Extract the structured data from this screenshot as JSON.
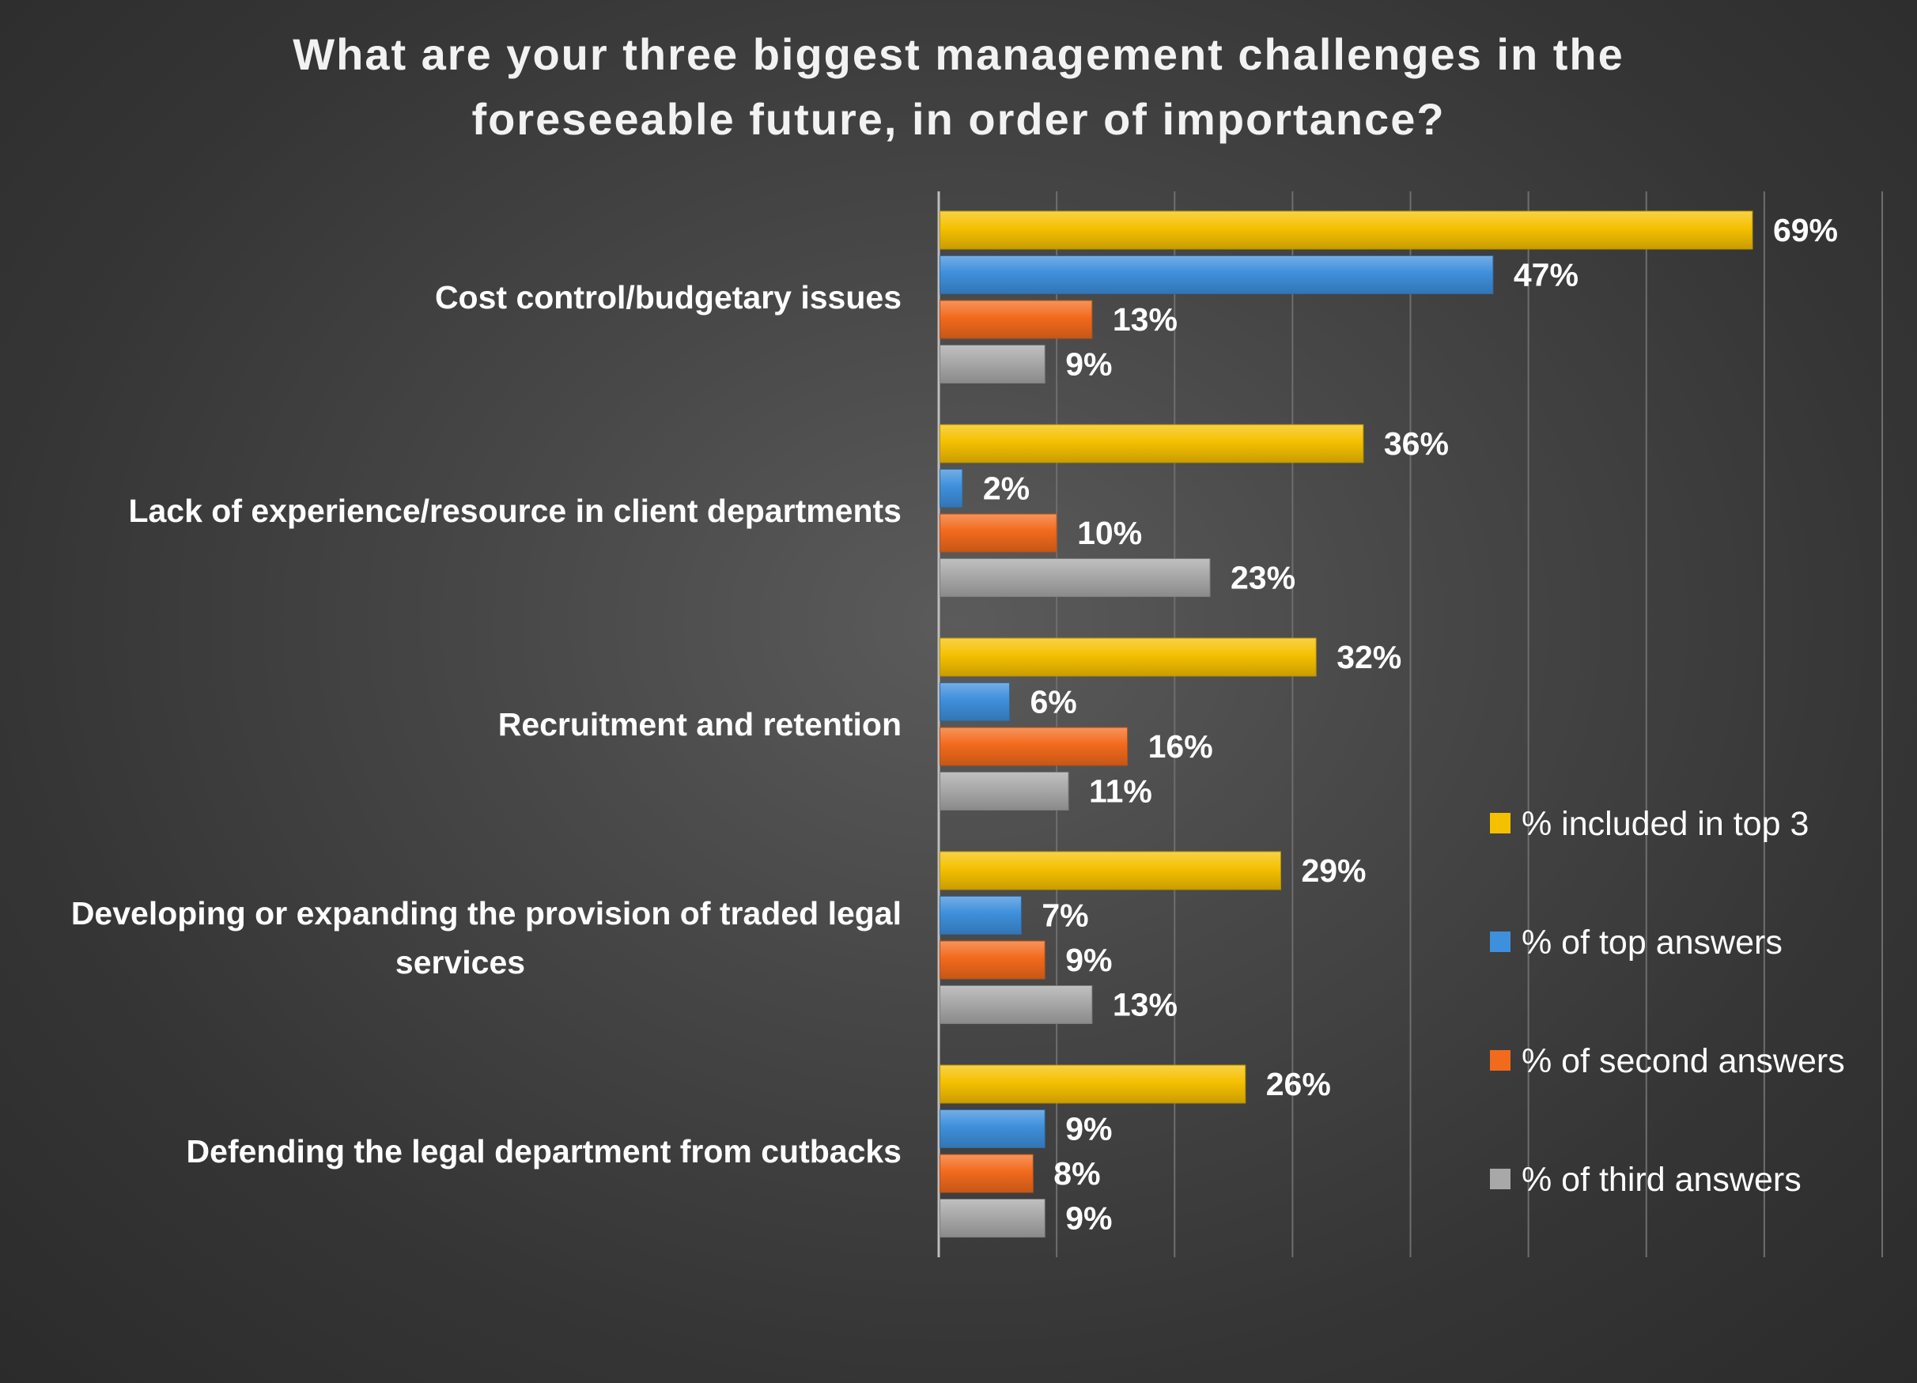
{
  "chart_data": {
    "type": "bar",
    "orientation": "horizontal",
    "title": "What are your three biggest management challenges in the foreseeable future, in order of importance?",
    "title_lines": [
      "What are your three biggest management challenges in the",
      "foreseeable future, in order of importance?"
    ],
    "categories": [
      "Cost control/budgetary issues",
      "Lack of experience/resource in client departments",
      "Recruitment and retention",
      "Developing or expanding the provision of traded legal services",
      "Defending the legal department from cutbacks"
    ],
    "category_lines": [
      [
        "Cost control/budgetary issues"
      ],
      [
        "Lack of experience/resource in client departments"
      ],
      [
        "Recruitment and retention"
      ],
      [
        "Developing or expanding the provision of traded legal",
        "services"
      ],
      [
        "Defending the legal department from cutbacks"
      ]
    ],
    "series": [
      {
        "name": "% included in top 3",
        "color": "#f5c000",
        "values": [
          69,
          36,
          32,
          29,
          26
        ]
      },
      {
        "name": "% of top answers",
        "color": "#3e8fdc",
        "values": [
          47,
          2,
          6,
          7,
          9
        ]
      },
      {
        "name": "% of second answers",
        "color": "#f26a1c",
        "values": [
          13,
          10,
          16,
          9,
          8
        ]
      },
      {
        "name": "% of third answers",
        "color": "#a8a8a8",
        "values": [
          9,
          23,
          11,
          13,
          9
        ]
      }
    ],
    "value_suffix": "%",
    "xlim": [
      0,
      80
    ],
    "grid": true,
    "xlabel": "",
    "ylabel": "",
    "legend_position": "right"
  }
}
